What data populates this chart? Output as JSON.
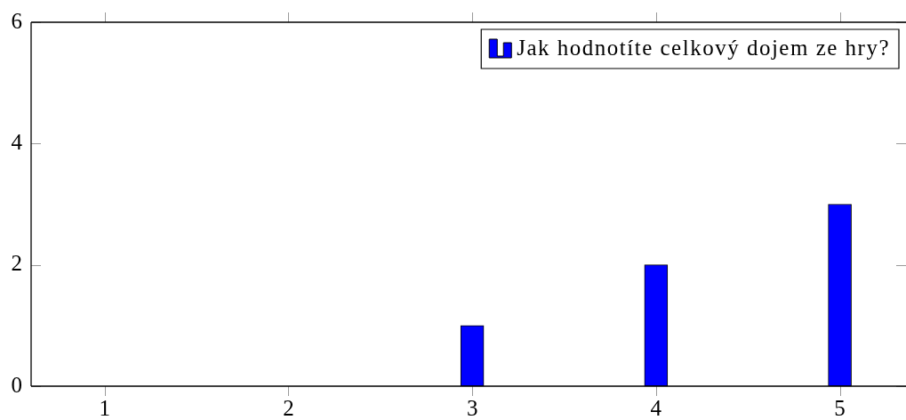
{
  "chart_data": {
    "type": "bar",
    "x": [
      1,
      2,
      3,
      4,
      5
    ],
    "series": [
      {
        "name": "Jak hodnotíte celkový dojem ze hry?",
        "color": "#0000ff",
        "values": [
          0,
          0,
          1,
          2,
          3
        ]
      }
    ],
    "xlim": [
      0.6,
      5.36
    ],
    "xticks": [
      1,
      2,
      3,
      4,
      5
    ],
    "ylim": [
      0,
      6
    ],
    "yticks": [
      0,
      2,
      4,
      6
    ],
    "legend": "top right"
  }
}
